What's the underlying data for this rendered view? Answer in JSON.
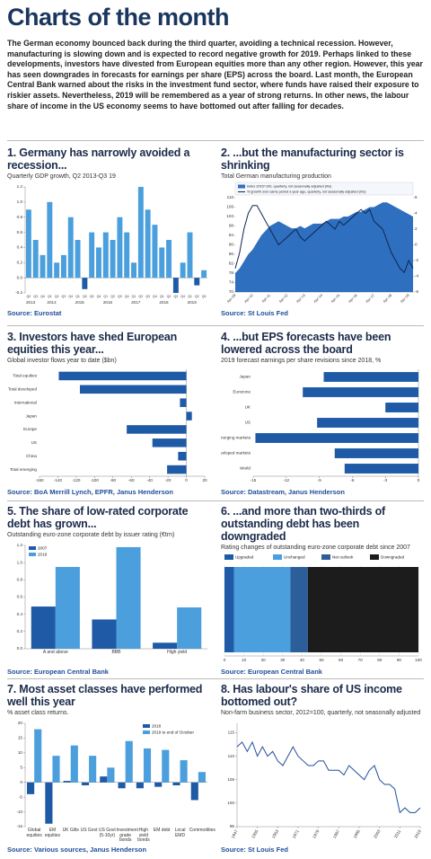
{
  "header": {
    "title": "Charts of the month",
    "intro": "The German economy bounced back during the third quarter, avoiding a technical recession. However, manufacturing is slowing down and is expected to record negative growth for 2019. Perhaps linked to these developments, investors have divested from European equities more than any other region. However, this year has seen downgrades in forecasts for earnings per share (EPS) across the board. Last month, the European Central Bank warned about the risks in the investment fund sector, where funds have raised their exposure to riskier assets. Nevertheless, 2019 will be remembered as a year of strong returns. In other news, the labour share of income in the US economy seems to have bottomed out after falling for decades."
  },
  "chart_data": [
    {
      "type": "bar",
      "title": "1. Germany has narrowly avoided a recession...",
      "subtitle": "Quarterly GDP growth, Q2 2013-Q3 19",
      "source": "Source: Eurostat",
      "categories": [
        "Q2",
        "Q3",
        "Q4",
        "Q1",
        "Q2",
        "Q3",
        "Q4",
        "Q1",
        "Q2",
        "Q3",
        "Q4",
        "Q1",
        "Q2",
        "Q3",
        "Q4",
        "Q1",
        "Q2",
        "Q3",
        "Q4",
        "Q1",
        "Q2",
        "Q3",
        "Q4",
        "Q1",
        "Q2",
        "Q3"
      ],
      "years": [
        "2013",
        "2014",
        "2015",
        "2016",
        "2017",
        "2018",
        "2019"
      ],
      "values": [
        0.9,
        0.5,
        0.3,
        1.0,
        0.2,
        0.3,
        0.8,
        0.5,
        -0.15,
        0.6,
        0.4,
        0.6,
        0.5,
        0.8,
        0.6,
        0.2,
        1.2,
        0.9,
        0.7,
        0.4,
        0.5,
        -0.2,
        0.2,
        0.6,
        -0.1,
        0.1
      ],
      "color": "#4a9fdc",
      "negative_color": "#1f5aa6",
      "ylim": [
        -0.2,
        1.2
      ],
      "yticks": [
        -0.2,
        {
          "value": 0,
          "label": "0.0"
        },
        0.2,
        0.4,
        0.6,
        0.8,
        {
          "value": 1,
          "label": "1.0"
        },
        1.2
      ]
    },
    {
      "type": "combo",
      "title": "2. ...but the manufacturing sector is shrinking",
      "subtitle": "Total German manufacturing production",
      "source": "Source: St Louis Fed",
      "categories": [
        "Apr-09",
        null,
        null,
        null,
        "Apr-10",
        null,
        null,
        null,
        "Apr-11",
        null,
        null,
        null,
        "Apr-12",
        null,
        null,
        null,
        "Apr-13",
        null,
        null,
        null,
        "Apr-14",
        null,
        null,
        null,
        "Apr-15",
        null,
        null,
        null,
        "Apr-16",
        null,
        null,
        null,
        "Apr-17",
        null,
        null,
        null,
        "Apr-18",
        null,
        null,
        null,
        "Apr-19",
        null
      ],
      "series": [
        {
          "name": "Index 2015=100, quarterly, not seasonally adjusted (lhs)",
          "color": "#2f6fbf",
          "values": [
            78,
            80,
            83,
            86,
            88,
            91,
            94,
            96,
            98,
            99,
            100,
            99,
            98,
            97,
            97,
            98,
            97,
            98,
            99,
            99,
            99,
            100,
            101,
            101,
            101,
            102,
            102,
            103,
            104,
            104,
            105,
            106,
            106,
            107,
            108,
            108,
            107,
            106,
            105,
            104,
            103,
            102
          ]
        },
        {
          "name": "% growth over same period a year ago, quarterly, not seasonally adjusted (rhs)",
          "color": "#0d2750",
          "axis": "y2",
          "values": [
            -3,
            -1,
            2,
            4,
            5,
            5,
            4,
            3,
            2,
            1,
            0,
            0.5,
            1,
            1.5,
            2,
            1,
            0.5,
            1,
            1.5,
            2,
            2.5,
            3,
            2.5,
            2,
            3,
            2.5,
            3,
            3.5,
            4,
            4.5,
            4,
            4.5,
            3,
            2.5,
            2,
            0.5,
            -1,
            -2,
            -3,
            -3.5,
            -2,
            -3
          ]
        }
      ],
      "ylim": [
        70,
        110
      ],
      "yticks": [
        70,
        74,
        78,
        82,
        86,
        90,
        94,
        98,
        102,
        106,
        110
      ],
      "y2lim": [
        -6,
        6
      ],
      "y2ticks": [
        -6,
        -4,
        -2,
        0,
        2,
        4,
        6
      ],
      "legend": "top"
    },
    {
      "type": "hbar",
      "title": "3. Investors have shed European equities this year...",
      "subtitle": "Global investor flows year to date ($bn)",
      "source": "Source: BoA Merrill Lynch, EPFR, Janus Henderson",
      "categories": [
        "Total equities",
        "Total developed",
        "International",
        "Japan",
        "Europe",
        "US",
        "China",
        "Total emerging"
      ],
      "values": [
        -139,
        -116,
        -7,
        6,
        -65,
        -37,
        -9,
        -21
      ],
      "color": "#1f5aa6",
      "xlim": [
        -160,
        20
      ],
      "xticks": [
        -160,
        -140,
        -120,
        -100,
        -80,
        -60,
        -40,
        -20,
        0,
        20
      ]
    },
    {
      "type": "hbar",
      "title": "4. ...but EPS forecasts have been lowered across the board",
      "subtitle": "2019 forecast earnings per share revisions since 2018, %",
      "source": "Source: Datastream, Janus Henderson",
      "categories": [
        "Japan",
        "Eurozone",
        "UK",
        "US",
        "Emerging markets",
        "Developed markets",
        "World"
      ],
      "values": [
        -8.6,
        -10.5,
        -3.0,
        -9.2,
        -14.8,
        -7.6,
        -6.7
      ],
      "color": "#1f5aa6",
      "xlim": [
        -15,
        0
      ],
      "xticks": [
        -15,
        -12,
        -9,
        -6,
        -3,
        0
      ]
    },
    {
      "type": "bar",
      "title": "5. The share of low-rated corporate debt has grown...",
      "subtitle": "Outstanding euro-zone corporate debt by issuer rating (€trn)",
      "source": "Source: European Central Bank",
      "categories": [
        "A and above",
        "BBB",
        "High yield"
      ],
      "series": [
        {
          "name": "2007",
          "color": "#1f5aa6",
          "values": [
            0.49,
            0.34,
            0.07
          ]
        },
        {
          "name": "2019",
          "color": "#4a9fdc",
          "values": [
            0.95,
            1.18,
            0.48
          ]
        }
      ],
      "ylim": [
        0,
        1.2
      ],
      "yticks": [
        {
          "value": 0,
          "label": "0.0"
        },
        0.2,
        0.4,
        0.6,
        0.8,
        {
          "value": 1,
          "label": "1.0"
        },
        1.2
      ],
      "legend": "top-left"
    },
    {
      "type": "stackedbar",
      "title": "6. ...and more than two-thirds of outstanding debt has been downgraded",
      "subtitle": "Rating changes of outstanding euro-zone corporate debt since 2007",
      "source": "Source: European Central Bank",
      "series": [
        {
          "name": "Upgraded",
          "color": "#1f5aa6",
          "values": [
            5
          ]
        },
        {
          "name": "Unchanged",
          "color": "#4a9fdc",
          "values": [
            29
          ]
        },
        {
          "name": "Net outlook",
          "color": "#2c5e99",
          "values": [
            9
          ]
        },
        {
          "name": "Downgraded",
          "color": "#1c1c1c",
          "values": [
            57
          ]
        }
      ],
      "xlim": [
        0,
        100
      ],
      "xticks": [
        0,
        10,
        20,
        30,
        40,
        50,
        60,
        70,
        80,
        90,
        100
      ],
      "grid": true,
      "legend": "top-left"
    },
    {
      "type": "bar",
      "title": "7. Most asset classes have performed well this year",
      "subtitle": "% asset class returns.",
      "source": "Source: Various sources, Janus Henderson",
      "categories": [
        "Global equities",
        "EM equities",
        "UK Gilts",
        "US Govt",
        "US Govt (5-10yr)",
        "Investment grade bonds",
        "High yield bonds",
        "EM debt",
        "Local EMD",
        "Commodities"
      ],
      "series": [
        {
          "name": "2018",
          "color": "#1f5aa6",
          "values": [
            -4,
            -14,
            0.5,
            -1,
            2,
            -2,
            -2,
            -1.5,
            -1,
            -6
          ]
        },
        {
          "name": "2019 to end of October",
          "color": "#4a9fdc",
          "values": [
            18,
            9,
            12.5,
            9,
            5,
            14,
            11.5,
            11,
            7.5,
            3.5
          ]
        }
      ],
      "ylim": [
        -15,
        20
      ],
      "yticks": [
        -15,
        -10,
        -5,
        0,
        5,
        10,
        15,
        20
      ],
      "legend": "top-right"
    },
    {
      "type": "line",
      "title": "8. Has labour's share of US income bottomed out?",
      "subtitle": "Non-farm business sector, 2012=100, quarterly, not seasonally adjusted",
      "source": "Source: St Louis Fed",
      "x": [
        1947,
        1949,
        1951,
        1953,
        1955,
        1957,
        1959,
        1961,
        1963,
        1965,
        1967,
        1969,
        1971,
        1973,
        1975,
        1977,
        1979,
        1981,
        1983,
        1985,
        1987,
        1989,
        1991,
        1993,
        1995,
        1997,
        1999,
        2001,
        2003,
        2005,
        2007,
        2009,
        2011,
        2013,
        2015,
        2017,
        2019
      ],
      "values": [
        112,
        113,
        111,
        113,
        110,
        112,
        110,
        111,
        109,
        108,
        110,
        112,
        110,
        109,
        108,
        108,
        109,
        109,
        107,
        107,
        107,
        106,
        108,
        107,
        106,
        105,
        107,
        108,
        105,
        104,
        104,
        103,
        98,
        99,
        98,
        98,
        99
      ],
      "color": "#1f4e9a",
      "xlim": [
        1947,
        2019
      ],
      "xticks": [
        1947,
        1955,
        1963,
        1971,
        1979,
        1987,
        1995,
        2003,
        2011,
        2019
      ],
      "ylim": [
        95,
        117
      ],
      "yticks": [
        95,
        100,
        105,
        110,
        115
      ]
    }
  ]
}
